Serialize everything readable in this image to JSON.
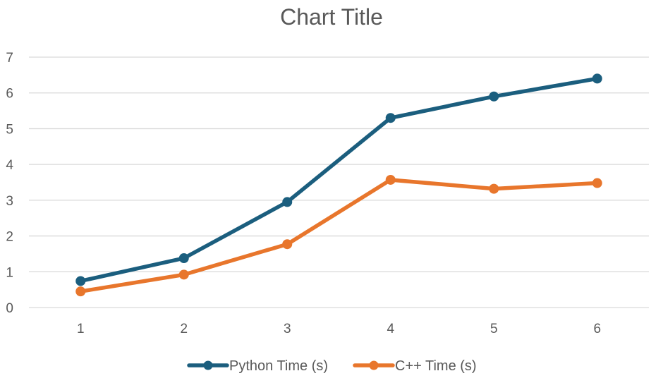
{
  "chart_data": {
    "type": "line",
    "title": "Chart Title",
    "xlabel": "",
    "ylabel": "",
    "x": [
      1,
      2,
      3,
      4,
      5,
      6
    ],
    "ylim": [
      0,
      7
    ],
    "yticks": [
      0,
      1,
      2,
      3,
      4,
      5,
      6,
      7
    ],
    "grid": true,
    "legend_position": "bottom",
    "series": [
      {
        "name": "Python Time (s)",
        "color": "#1b5e7e",
        "values": [
          0.74,
          1.38,
          2.95,
          5.3,
          5.9,
          6.4
        ]
      },
      {
        "name": "C++ Time (s)",
        "color": "#e8762c",
        "values": [
          0.45,
          0.92,
          1.77,
          3.57,
          3.32,
          3.48
        ]
      }
    ]
  }
}
